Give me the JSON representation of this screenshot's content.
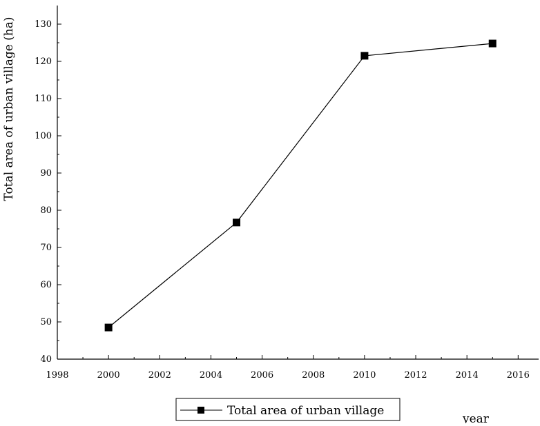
{
  "chart_data": {
    "type": "line",
    "title": "",
    "xlabel": "year",
    "ylabel": "Total area of urban village (ha)",
    "xlim": [
      1998,
      2016.8
    ],
    "ylim": [
      40,
      135
    ],
    "x_ticks": [
      1998,
      2000,
      2002,
      2004,
      2006,
      2008,
      2010,
      2012,
      2014,
      2016
    ],
    "y_ticks": [
      40,
      50,
      60,
      70,
      80,
      90,
      100,
      110,
      120,
      130
    ],
    "grid": false,
    "legend_position": "bottom-left",
    "series": [
      {
        "name": "Total area of urban village",
        "marker": "square",
        "color": "#000000",
        "x": [
          2000,
          2005,
          2010,
          2015
        ],
        "y": [
          48.5,
          76.7,
          121.5,
          124.8
        ]
      }
    ]
  }
}
